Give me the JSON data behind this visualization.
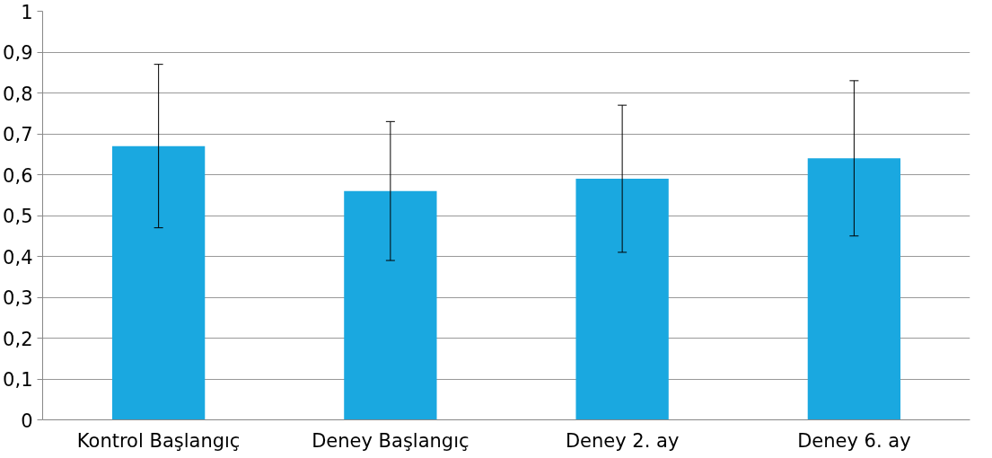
{
  "chart_data": {
    "type": "bar",
    "categories": [
      "Kontrol Başlangıç",
      "Deney Başlangıç",
      "Deney 2. ay",
      "Deney 6. ay"
    ],
    "values": [
      0.67,
      0.56,
      0.59,
      0.64
    ],
    "errors": [
      0.2,
      0.17,
      0.18,
      0.19
    ],
    "color": "#1aa8e0",
    "ylim": [
      0,
      1
    ],
    "yticks": [
      {
        "value": 0,
        "label": "0"
      },
      {
        "value": 0.1,
        "label": "0,1"
      },
      {
        "value": 0.2,
        "label": "0,2"
      },
      {
        "value": 0.3,
        "label": "0,3"
      },
      {
        "value": 0.4,
        "label": "0,4"
      },
      {
        "value": 0.5,
        "label": "0,5"
      },
      {
        "value": 0.6,
        "label": "0,6"
      },
      {
        "value": 0.7,
        "label": "0,7"
      },
      {
        "value": 0.8,
        "label": "0,8"
      },
      {
        "value": 0.9,
        "label": "0,9"
      },
      {
        "value": 1,
        "label": "1"
      }
    ],
    "grid": "y"
  }
}
